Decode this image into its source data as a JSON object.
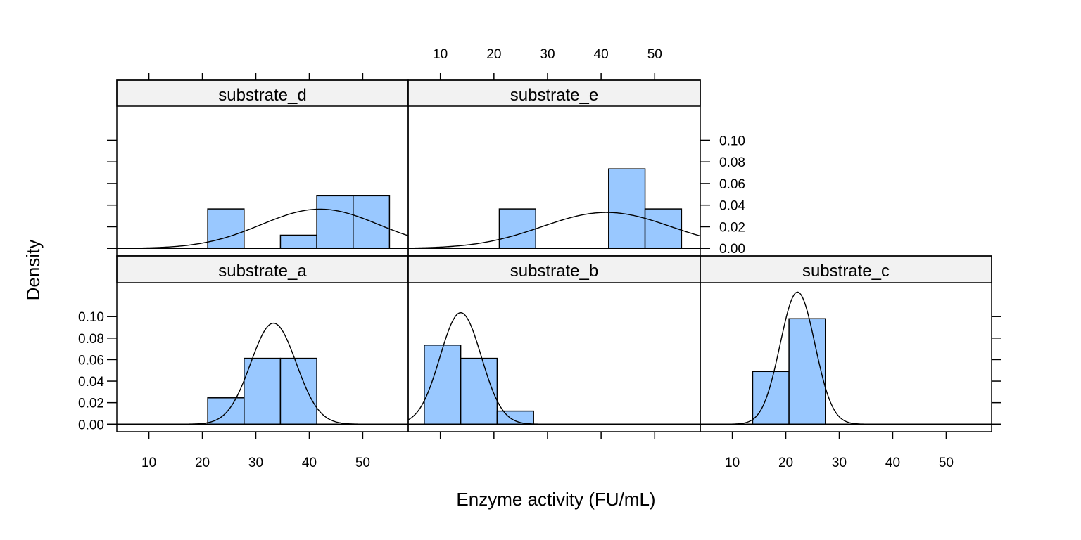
{
  "chart_data": {
    "type": "histogram",
    "xlabel": "Enzyme activity (FU/mL)",
    "ylabel": "Density",
    "xlim": [
      4,
      58.5
    ],
    "ylim": [
      -0.007,
      0.1315
    ],
    "x_ticks": [
      10,
      20,
      30,
      40,
      50
    ],
    "y_ticks": [
      0.0,
      0.02,
      0.04,
      0.06,
      0.08,
      0.1
    ],
    "y_tick_labels": [
      "0.00",
      "0.02",
      "0.04",
      "0.06",
      "0.08",
      "0.10"
    ],
    "bar_color": "#99c8ff",
    "strip_color": "#f2f2f2",
    "panels": [
      {
        "name": "substrate_d",
        "bins": [
          {
            "x0": 21.0,
            "x1": 27.8,
            "density": 0.0365
          },
          {
            "x0": 34.6,
            "x1": 41.4,
            "density": 0.0122
          },
          {
            "x0": 41.4,
            "x1": 48.2,
            "density": 0.0487
          },
          {
            "x0": 48.2,
            "x1": 55.0,
            "density": 0.0487
          }
        ],
        "curve": {
          "mean": 42.0,
          "sd": 11.0
        }
      },
      {
        "name": "substrate_e",
        "bins": [
          {
            "x0": 21.0,
            "x1": 27.8,
            "density": 0.0365
          },
          {
            "x0": 41.4,
            "x1": 48.2,
            "density": 0.0735
          },
          {
            "x0": 48.2,
            "x1": 55.0,
            "density": 0.0365
          }
        ],
        "curve": {
          "mean": 41.0,
          "sd": 12.0
        }
      },
      {
        "name": "substrate_a",
        "bins": [
          {
            "x0": 21.0,
            "x1": 27.8,
            "density": 0.0245
          },
          {
            "x0": 27.8,
            "x1": 34.6,
            "density": 0.0612
          },
          {
            "x0": 34.6,
            "x1": 41.4,
            "density": 0.0612
          }
        ],
        "curve": {
          "mean": 33.3,
          "sd": 4.25
        }
      },
      {
        "name": "substrate_b",
        "bins": [
          {
            "x0": 7.0,
            "x1": 13.8,
            "density": 0.0735
          },
          {
            "x0": 13.8,
            "x1": 20.6,
            "density": 0.0612
          },
          {
            "x0": 20.6,
            "x1": 27.4,
            "density": 0.0122
          }
        ],
        "curve": {
          "mean": 13.8,
          "sd": 3.85
        }
      },
      {
        "name": "substrate_c",
        "bins": [
          {
            "x0": 13.8,
            "x1": 20.6,
            "density": 0.049
          },
          {
            "x0": 20.6,
            "x1": 27.4,
            "density": 0.098
          }
        ],
        "curve": {
          "mean": 22.2,
          "sd": 3.25
        }
      }
    ]
  }
}
